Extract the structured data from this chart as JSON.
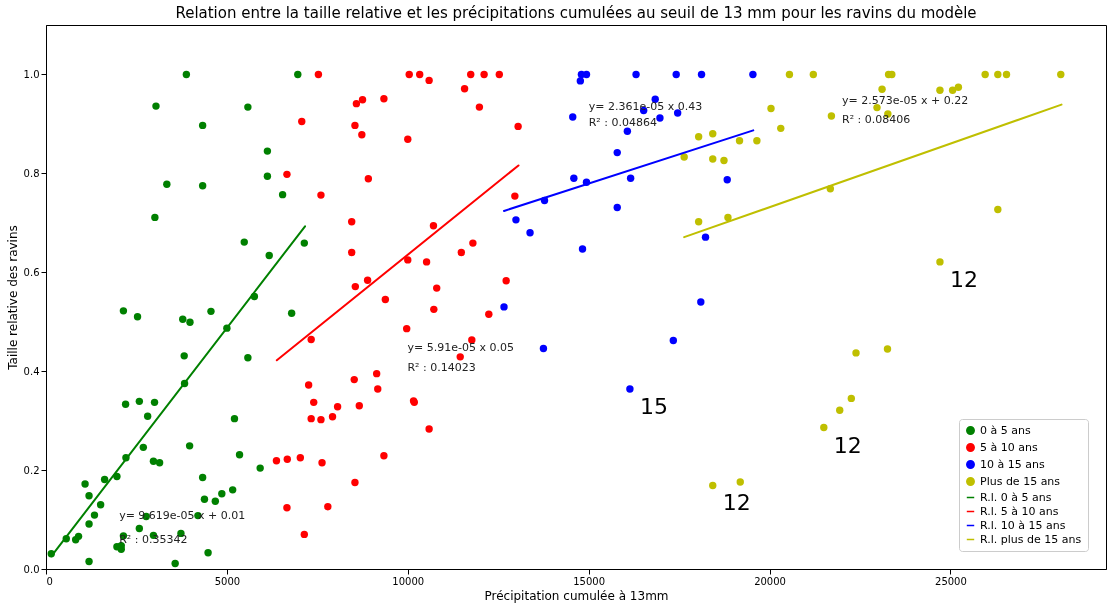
{
  "chart_data": {
    "type": "scatter",
    "title": "Relation entre la taille relative et les précipitations cumulées au seuil de 13 mm pour les ravins du modèle",
    "xlabel": "Précipitation cumulée à 13mm",
    "ylabel": "Taille relative des ravins",
    "xlim": [
      0,
      29300
    ],
    "ylim": [
      0,
      1.1
    ],
    "xticks": [
      0,
      5000,
      10000,
      15000,
      20000,
      25000
    ],
    "yticks": [
      {
        "value": 0,
        "label": "0.0"
      },
      0.2,
      0.4,
      0.6,
      0.8,
      {
        "value": 1,
        "label": "1.0"
      }
    ],
    "grid": false,
    "legend": "bottom right",
    "series": [
      {
        "name": "0 à 5 ans",
        "color": "#008000",
        "x": [
          146,
          560,
          820,
          900,
          1080,
          1190,
          1190,
          1190,
          1340,
          1510,
          1620,
          1960,
          1960,
          2080,
          2080,
          2140,
          2210,
          2140,
          2200,
          2530,
          2580,
          2580,
          2690,
          2810,
          2770,
          2970,
          3140,
          3000,
          2970,
          3010,
          3040,
          3340,
          3570,
          3730,
          3780,
          3820,
          3830,
          3880,
          3980,
          3970,
          4200,
          4330,
          4330,
          4330,
          4380,
          4480,
          4560,
          4680,
          4860,
          5000,
          5160,
          5210,
          5350,
          5480,
          5580,
          5580,
          5760,
          5920,
          6120,
          6120,
          6170,
          6540,
          6790,
          6960,
          7140
        ],
        "values": [
          0.031,
          0.061,
          0.059,
          0.066,
          0.172,
          0.148,
          0.015,
          0.091,
          0.109,
          0.13,
          0.181,
          0.187,
          0.045,
          0.047,
          0.04,
          0.067,
          0.225,
          0.522,
          0.333,
          0.51,
          0.339,
          0.082,
          0.246,
          0.309,
          0.106,
          0.218,
          0.215,
          0.337,
          0.068,
          0.711,
          0.936,
          0.778,
          0.011,
          0.072,
          0.505,
          0.431,
          0.375,
          1.0,
          0.499,
          0.249,
          0.108,
          0.897,
          0.775,
          0.185,
          0.141,
          0.033,
          0.521,
          0.137,
          0.152,
          0.487,
          0.16,
          0.304,
          0.231,
          0.661,
          0.934,
          0.427,
          0.551,
          0.204,
          0.845,
          0.794,
          0.634,
          0.757,
          0.517,
          1.0,
          0.659
        ]
      },
      {
        "name": "5 à 10 ans",
        "color": "#ff0000",
        "x": [
          6660,
          6370,
          6670,
          6660,
          7030,
          7070,
          7140,
          7260,
          7330,
          7400,
          7330,
          7530,
          7600,
          7600,
          7630,
          7790,
          7920,
          8060,
          8450,
          8450,
          8550,
          8520,
          8540,
          8540,
          8580,
          8750,
          8730,
          8660,
          8890,
          8910,
          9140,
          9170,
          9340,
          9380,
          9340,
          9970,
          10000,
          10000,
          10040,
          10160,
          10180,
          10330,
          10520,
          10590,
          10590,
          10710,
          10800,
          10720,
          11450,
          11480,
          11570,
          11740,
          11770,
          11800,
          11980,
          12110,
          12240,
          12530,
          12720,
          12960,
          13050
        ],
        "values": [
          0.798,
          0.219,
          0.222,
          0.124,
          0.225,
          0.905,
          0.07,
          0.372,
          0.464,
          0.337,
          0.304,
          1.0,
          0.756,
          0.302,
          0.215,
          0.126,
          0.308,
          0.328,
          0.702,
          0.64,
          0.571,
          0.383,
          0.175,
          0.897,
          0.941,
          0.949,
          0.878,
          0.33,
          0.584,
          0.789,
          0.395,
          0.364,
          0.951,
          0.545,
          0.229,
          0.486,
          0.869,
          0.625,
          1.0,
          0.34,
          0.337,
          1.0,
          0.621,
          0.988,
          0.283,
          0.694,
          0.568,
          0.525,
          0.429,
          0.64,
          0.971,
          1.0,
          0.463,
          0.659,
          0.934,
          1.0,
          0.515,
          1.0,
          0.583,
          0.754,
          0.895
        ]
      },
      {
        "name": "10 à 15 ans",
        "color": "#0000ff",
        "x": [
          12660,
          12990,
          13380,
          13750,
          13780,
          14560,
          14590,
          14770,
          14800,
          14940,
          14830,
          14940,
          15790,
          15790,
          16070,
          16140,
          16160,
          16310,
          16520,
          16840,
          16970,
          17340,
          17420,
          17460,
          18100,
          18120,
          18230,
          18830,
          19540
        ],
        "values": [
          0.53,
          0.706,
          0.68,
          0.446,
          0.745,
          0.914,
          0.79,
          0.987,
          1.0,
          1.0,
          0.647,
          0.782,
          0.842,
          0.731,
          0.885,
          0.364,
          0.79,
          1.0,
          0.927,
          0.95,
          0.912,
          0.462,
          1.0,
          0.922,
          0.54,
          1.0,
          0.671,
          0.787,
          1.0
        ]
      },
      {
        "name": "Plus de 15 ans",
        "color": "#bfbf00",
        "x": [
          17640,
          18040,
          18040,
          18430,
          18430,
          18430,
          18740,
          18850,
          19190,
          19170,
          19650,
          20040,
          20310,
          20550,
          21210,
          21500,
          21680,
          21710,
          21940,
          22260,
          22390,
          22970,
          23110,
          23270,
          23260,
          23290,
          23380,
          24710,
          24710,
          25060,
          25220,
          25960,
          26310,
          26550,
          26310,
          28050
        ],
        "values": [
          0.833,
          0.874,
          0.702,
          0.88,
          0.829,
          0.169,
          0.826,
          0.711,
          0.176,
          0.866,
          0.866,
          0.931,
          0.891,
          1.0,
          1.0,
          0.286,
          0.769,
          0.916,
          0.321,
          0.345,
          0.437,
          0.933,
          0.97,
          0.92,
          0.445,
          1.0,
          1.0,
          0.968,
          0.621,
          0.968,
          0.974,
          1.0,
          1.0,
          1.0,
          0.727,
          1.0
        ]
      },
      {
        "name": "R.l. 0 à  5 ans",
        "type": "line",
        "color": "#008000",
        "x": [
          150,
          7160
        ],
        "values": [
          0.026,
          0.693
        ]
      },
      {
        "name": "R.l. 5 à  10 ans",
        "type": "line",
        "color": "#ff0000",
        "x": [
          6380,
          13060
        ],
        "values": [
          0.422,
          0.816
        ]
      },
      {
        "name": "R.l. 10 à  15 ans",
        "type": "line",
        "color": "#0000ff",
        "x": [
          12660,
          19550
        ],
        "values": [
          0.724,
          0.887
        ]
      },
      {
        "name": "R.l. plus de 15 ans",
        "type": "line",
        "color": "#bfbf00",
        "x": [
          17640,
          28070
        ],
        "values": [
          0.671,
          0.939
        ]
      }
    ],
    "annotations": [
      "y= 9.619e-05 x + 0.01",
      "R² : 0.35342",
      "y= 5.91e-05 x 0.05",
      "R² : 0.14023",
      "y= 2.361e-05 x 0.43",
      "R² : 0.04864",
      "y= 2.573e-05 x + 0.22",
      "R² : 0.08406",
      {
        "text": "15",
        "x": 16140,
        "y": 0.364
      },
      {
        "text": "12",
        "x": 24710,
        "y": 0.621
      },
      {
        "text": "12",
        "x": 21500,
        "y": 0.286
      },
      {
        "text": "12",
        "x": 18430,
        "y": 0.169
      }
    ]
  }
}
